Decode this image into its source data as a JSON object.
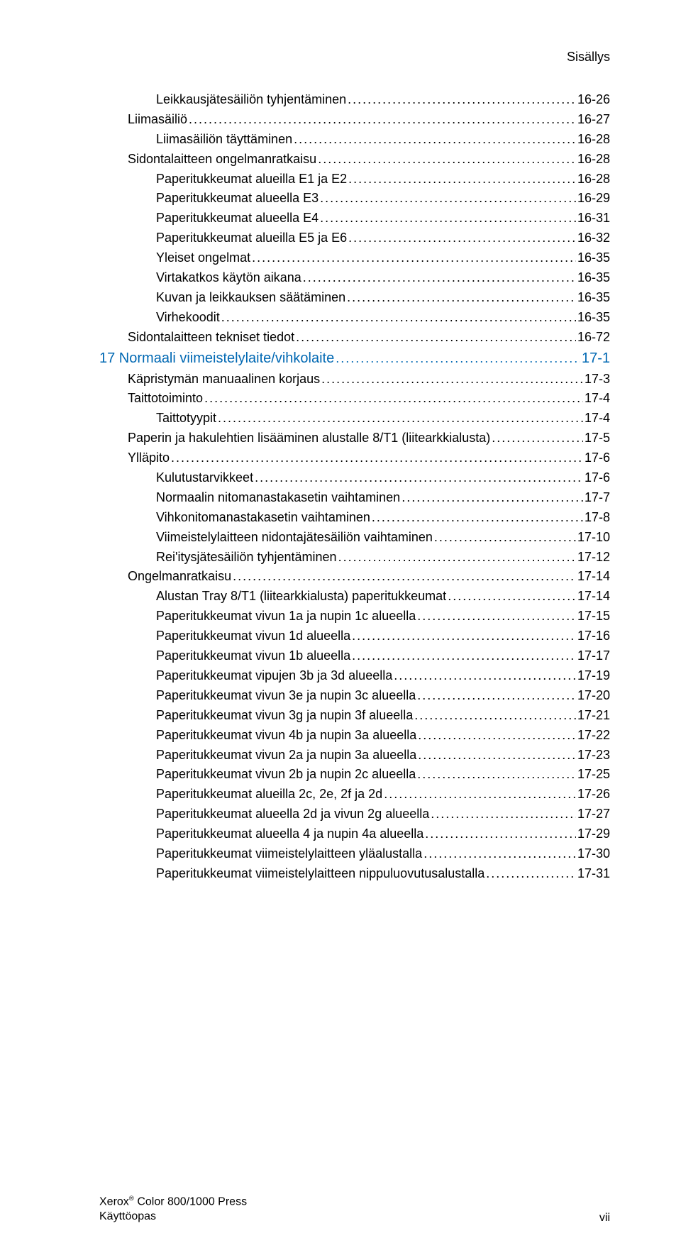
{
  "header": {
    "title": "Sisällys"
  },
  "colors": {
    "text": "#000000",
    "link_blue": "#0068b3",
    "background": "#ffffff"
  },
  "typography": {
    "body_fontsize_pt": 14,
    "section_fontsize_pt": 15,
    "header_fontsize_pt": 14,
    "footer_fontsize_pt": 12
  },
  "toc": [
    {
      "label": "Leikkausjätesäiliön tyhjentäminen",
      "page": "16-26",
      "indent": 2,
      "section": false
    },
    {
      "label": "Liimasäiliö",
      "page": "16-27",
      "indent": 1,
      "section": false
    },
    {
      "label": "Liimasäiliön täyttäminen",
      "page": "16-28",
      "indent": 2,
      "section": false
    },
    {
      "label": "Sidontalaitteen ongelmanratkaisu",
      "page": "16-28",
      "indent": 1,
      "section": false
    },
    {
      "label": "Paperitukkeumat alueilla E1 ja E2",
      "page": "16-28",
      "indent": 2,
      "section": false
    },
    {
      "label": "Paperitukkeumat alueella E3",
      "page": "16-29",
      "indent": 2,
      "section": false
    },
    {
      "label": "Paperitukkeumat alueella E4",
      "page": "16-31",
      "indent": 2,
      "section": false
    },
    {
      "label": "Paperitukkeumat alueilla E5 ja E6",
      "page": "16-32",
      "indent": 2,
      "section": false
    },
    {
      "label": "Yleiset ongelmat",
      "page": "16-35",
      "indent": 2,
      "section": false
    },
    {
      "label": "Virtakatkos käytön aikana",
      "page": "16-35",
      "indent": 2,
      "section": false
    },
    {
      "label": "Kuvan ja leikkauksen säätäminen",
      "page": "16-35",
      "indent": 2,
      "section": false
    },
    {
      "label": "Virhekoodit",
      "page": "16-35",
      "indent": 2,
      "section": false
    },
    {
      "label": "Sidontalaitteen tekniset tiedot",
      "page": "16-72",
      "indent": 1,
      "section": false
    },
    {
      "label": "17 Normaali viimeistelylaite/vihkolaite",
      "page": "17-1",
      "indent": 0,
      "section": true
    },
    {
      "label": "Käpristymän manuaalinen korjaus",
      "page": "17-3",
      "indent": 1,
      "section": false
    },
    {
      "label": "Taittotoiminto",
      "page": "17-4",
      "indent": 1,
      "section": false
    },
    {
      "label": "Taittotyypit",
      "page": "17-4",
      "indent": 2,
      "section": false
    },
    {
      "label": "Paperin ja hakulehtien lisääminen alustalle 8/T1 (liitearkkialusta)",
      "page": "17-5",
      "indent": 1,
      "section": false
    },
    {
      "label": "Ylläpito",
      "page": "17-6",
      "indent": 1,
      "section": false
    },
    {
      "label": "Kulutustarvikkeet",
      "page": "17-6",
      "indent": 2,
      "section": false
    },
    {
      "label": "Normaalin nitomanastakasetin vaihtaminen",
      "page": "17-7",
      "indent": 2,
      "section": false
    },
    {
      "label": "Vihkonitomanastakasetin vaihtaminen",
      "page": "17-8",
      "indent": 2,
      "section": false
    },
    {
      "label": "Viimeistelylaitteen nidontajätesäiliön vaihtaminen",
      "page": "17-10",
      "indent": 2,
      "section": false
    },
    {
      "label": "Rei'itysjätesäiliön tyhjentäminen",
      "page": "17-12",
      "indent": 2,
      "section": false
    },
    {
      "label": "Ongelmanratkaisu",
      "page": "17-14",
      "indent": 1,
      "section": false
    },
    {
      "label": "Alustan Tray 8/T1 (liitearkkialusta) paperitukkeumat",
      "page": "17-14",
      "indent": 2,
      "section": false
    },
    {
      "label": "Paperitukkeumat vivun 1a ja nupin 1c alueella",
      "page": "17-15",
      "indent": 2,
      "section": false
    },
    {
      "label": "Paperitukkeumat vivun 1d alueella",
      "page": "17-16",
      "indent": 2,
      "section": false
    },
    {
      "label": "Paperitukkeumat vivun 1b alueella",
      "page": "17-17",
      "indent": 2,
      "section": false
    },
    {
      "label": "Paperitukkeumat vipujen 3b ja 3d alueella",
      "page": "17-19",
      "indent": 2,
      "section": false
    },
    {
      "label": "Paperitukkeumat vivun 3e ja nupin 3c alueella",
      "page": "17-20",
      "indent": 2,
      "section": false
    },
    {
      "label": "Paperitukkeumat vivun 3g ja nupin 3f alueella",
      "page": "17-21",
      "indent": 2,
      "section": false
    },
    {
      "label": "Paperitukkeumat vivun 4b ja nupin 3a alueella",
      "page": "17-22",
      "indent": 2,
      "section": false
    },
    {
      "label": "Paperitukkeumat vivun 2a ja nupin 3a alueella",
      "page": "17-23",
      "indent": 2,
      "section": false
    },
    {
      "label": "Paperitukkeumat vivun 2b ja nupin 2c alueella",
      "page": "17-25",
      "indent": 2,
      "section": false
    },
    {
      "label": "Paperitukkeumat alueilla 2c, 2e, 2f ja 2d",
      "page": "17-26",
      "indent": 2,
      "section": false
    },
    {
      "label": "Paperitukkeumat alueella 2d ja vivun 2g alueella",
      "page": "17-27",
      "indent": 2,
      "section": false
    },
    {
      "label": "Paperitukkeumat alueella 4 ja nupin 4a alueella",
      "page": "17-29",
      "indent": 2,
      "section": false
    },
    {
      "label": "Paperitukkeumat viimeistelylaitteen yläalustalla",
      "page": "17-30",
      "indent": 2,
      "section": false
    },
    {
      "label": "Paperitukkeumat viimeistelylaitteen nippuluovutusalustalla",
      "page": "17-31",
      "indent": 2,
      "section": false
    }
  ],
  "footer": {
    "line1_prefix": "Xerox",
    "line1_reg": "®",
    "line1_suffix": " Color 800/1000 Press",
    "line2": "Käyttöopas",
    "page_roman": "vii"
  }
}
